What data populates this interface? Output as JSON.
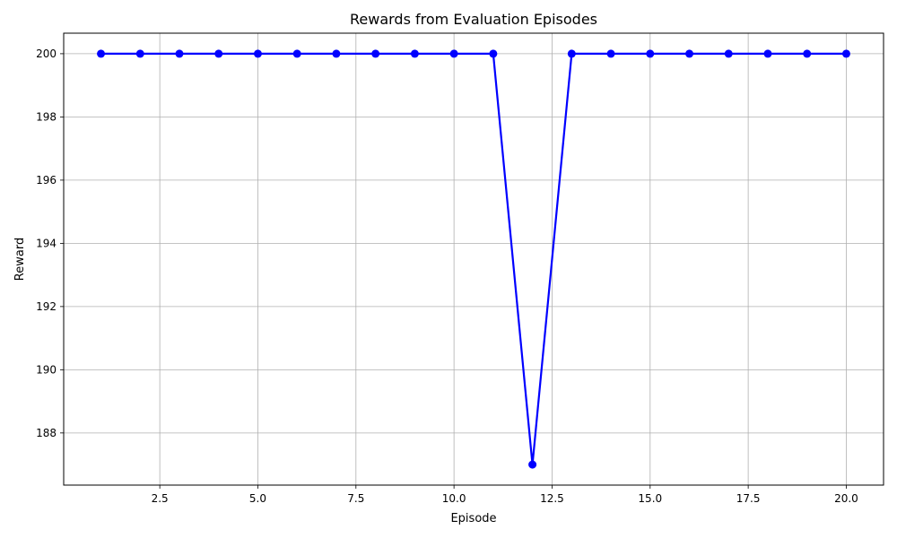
{
  "chart_data": {
    "type": "line",
    "title": "Rewards from Evaluation Episodes",
    "xlabel": "Episode",
    "ylabel": "Reward",
    "x": [
      1,
      2,
      3,
      4,
      5,
      6,
      7,
      8,
      9,
      10,
      11,
      12,
      13,
      14,
      15,
      16,
      17,
      18,
      19,
      20
    ],
    "series": [
      {
        "values": [
          200,
          200,
          200,
          200,
          200,
          200,
          200,
          200,
          200,
          200,
          200,
          187,
          200,
          200,
          200,
          200,
          200,
          200,
          200,
          200
        ],
        "color": "#0000ff",
        "marker": "circle"
      }
    ],
    "xlim": [
      0.05,
      20.95
    ],
    "ylim": [
      186.35,
      200.65
    ],
    "xticks": [
      "2.5",
      "5.0",
      "7.5",
      "10.0",
      "12.5",
      "15.0",
      "17.5",
      "20.0"
    ],
    "yticks": [
      "188",
      "190",
      "192",
      "194",
      "196",
      "198",
      "200"
    ],
    "grid": true,
    "grid_color": "#b0b0b0"
  }
}
